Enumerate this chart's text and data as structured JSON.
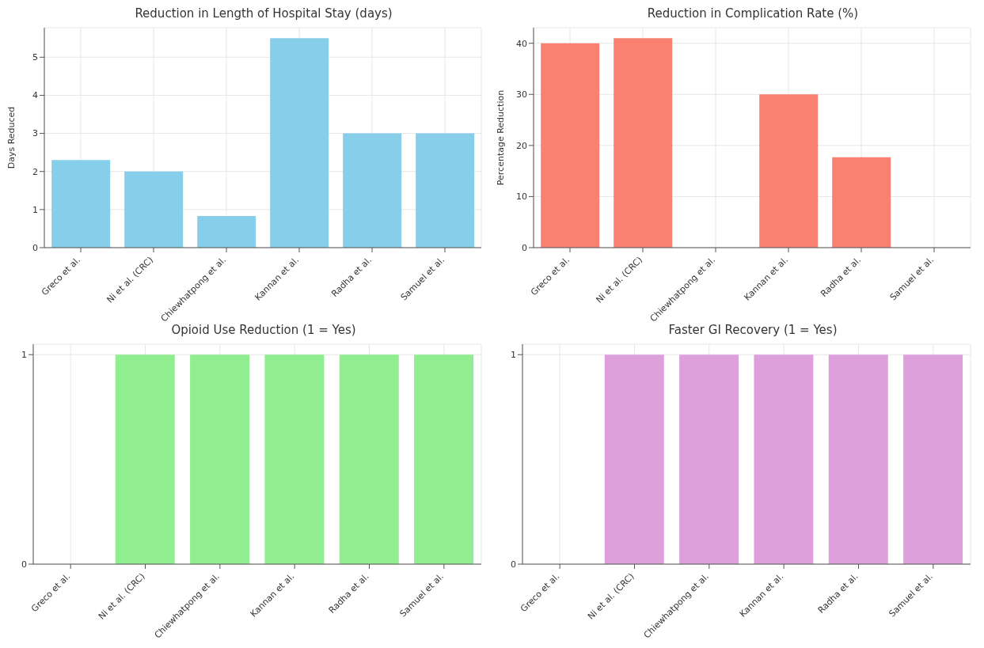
{
  "chart_data": [
    {
      "type": "bar",
      "title": "Reduction in Length of Hospital Stay (days)",
      "ylabel": "Days Reduced",
      "categories": [
        "Greco et al.",
        "Ni et al. (CRC)",
        "Chiewhatpong et al.",
        "Kannan et al.",
        "Radha et al.",
        "Samuel et al."
      ],
      "values": [
        2.3,
        2.0,
        0.83,
        5.5,
        3.0,
        3.0
      ],
      "color": "#87ceeb",
      "ylim": [
        0,
        5.775
      ],
      "yticks": [
        0,
        1,
        2,
        3,
        4,
        5
      ],
      "grid": true
    },
    {
      "type": "bar",
      "title": "Reduction in Complication Rate (%)",
      "ylabel": "Percentage Reduction",
      "categories": [
        "Greco et al.",
        "Ni et al. (CRC)",
        "Chiewhatpong et al.",
        "Kannan et al.",
        "Radha et al.",
        "Samuel et al."
      ],
      "values": [
        40,
        41,
        0,
        30,
        17.7,
        0
      ],
      "color": "#fa8072",
      "ylim": [
        0,
        43.05
      ],
      "yticks": [
        0,
        10,
        20,
        30,
        40
      ],
      "grid": true
    },
    {
      "type": "bar",
      "title": "Opioid Use Reduction (1 = Yes)",
      "categories": [
        "Greco et al.",
        "Ni et al. (CRC)",
        "Chiewhatpong et al.",
        "Kannan et al.",
        "Radha et al.",
        "Samuel et al."
      ],
      "values": [
        0,
        1,
        1,
        1,
        1,
        1
      ],
      "color": "#90ee90",
      "ylim": [
        0,
        1.05
      ],
      "yticks": [
        0,
        1
      ],
      "grid": true
    },
    {
      "type": "bar",
      "title": "Faster GI Recovery (1 = Yes)",
      "categories": [
        "Greco et al.",
        "Ni et al. (CRC)",
        "Chiewhatpong et al.",
        "Kannan et al.",
        "Radha et al.",
        "Samuel et al."
      ],
      "values": [
        0,
        1,
        1,
        1,
        1,
        1
      ],
      "color": "#dda0dd",
      "ylim": [
        0,
        1.05
      ],
      "yticks": [
        0,
        1
      ],
      "grid": true
    }
  ]
}
